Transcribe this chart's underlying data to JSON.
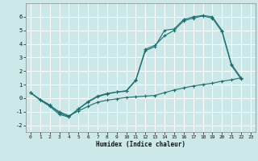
{
  "xlabel": "Humidex (Indice chaleur)",
  "background_color": "#cce8e8",
  "grid_color": "#ffffff",
  "line_color": "#1a7070",
  "line1_x": [
    0,
    1,
    2,
    3,
    4,
    5,
    6,
    7,
    8,
    9,
    10,
    11,
    12,
    13,
    14,
    15,
    16,
    17,
    18,
    19,
    20,
    21,
    22
  ],
  "line1_y": [
    0.4,
    -0.15,
    -0.6,
    -1.2,
    -1.4,
    -0.8,
    -0.3,
    0.1,
    0.3,
    0.45,
    0.5,
    1.3,
    3.5,
    3.8,
    5.0,
    5.1,
    5.8,
    6.0,
    6.1,
    6.0,
    5.0,
    2.5,
    1.5
  ],
  "line2_x": [
    0,
    1,
    2,
    3,
    4,
    5,
    6,
    7,
    8,
    9,
    10,
    11,
    12,
    13,
    14,
    15,
    16,
    17,
    18,
    19,
    20,
    21,
    22
  ],
  "line2_y": [
    0.4,
    -0.1,
    -0.5,
    -1.1,
    -1.35,
    -0.8,
    -0.25,
    0.15,
    0.35,
    0.45,
    0.55,
    1.35,
    3.6,
    3.9,
    4.6,
    5.0,
    5.7,
    5.9,
    6.05,
    5.9,
    4.9,
    2.4,
    1.4
  ],
  "line3_x": [
    0,
    1,
    2,
    3,
    4,
    5,
    6,
    7,
    8,
    9,
    10,
    11,
    12,
    13,
    14,
    15,
    16,
    17,
    18,
    19,
    20,
    21,
    22
  ],
  "line3_y": [
    0.4,
    -0.1,
    -0.55,
    -1.0,
    -1.3,
    -0.95,
    -0.6,
    -0.3,
    -0.15,
    -0.05,
    0.05,
    0.1,
    0.15,
    0.2,
    0.4,
    0.6,
    0.75,
    0.9,
    1.0,
    1.1,
    1.25,
    1.35,
    1.5
  ],
  "xlim": [
    -0.5,
    23.5
  ],
  "ylim": [
    -2.5,
    7.0
  ],
  "xticks": [
    0,
    1,
    2,
    3,
    4,
    5,
    6,
    7,
    8,
    9,
    10,
    11,
    12,
    13,
    14,
    15,
    16,
    17,
    18,
    19,
    20,
    21,
    22,
    23
  ],
  "yticks": [
    -2,
    -1,
    0,
    1,
    2,
    3,
    4,
    5,
    6
  ]
}
